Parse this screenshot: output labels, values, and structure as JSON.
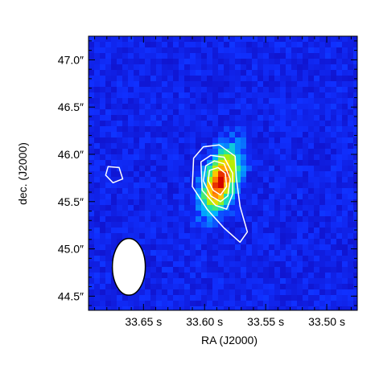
{
  "chart_data": {
    "type": "heatmap",
    "xlabel": "RA (J2000)",
    "ylabel": "dec. (J2000)",
    "x_ticks": [
      {
        "value": 33.65,
        "label": "33.65 s"
      },
      {
        "value": 33.6,
        "label": "33.60 s"
      },
      {
        "value": 33.55,
        "label": "33.55 s"
      },
      {
        "value": 33.5,
        "label": "33.50 s"
      }
    ],
    "y_ticks": [
      {
        "value": 44.5,
        "label": "44.5″"
      },
      {
        "value": 45.0,
        "label": "45.0″"
      },
      {
        "value": 45.5,
        "label": "45.5″"
      },
      {
        "value": 46.0,
        "label": "46.0″"
      },
      {
        "value": 46.5,
        "label": "46.5″"
      },
      {
        "value": 47.0,
        "label": "47.0″"
      }
    ],
    "xlim": [
      33.695,
      33.475
    ],
    "ylim": [
      44.35,
      47.25
    ],
    "colormap": [
      "#1010c8",
      "#1030ff",
      "#00b4ff",
      "#20e6a0",
      "#b4f000",
      "#ffd200",
      "#ff6400",
      "#d20000"
    ],
    "background_color": "#1a1ad6",
    "source_peak": {
      "ra": 33.587,
      "dec": 45.72
    },
    "contour_color": "#ffffff",
    "contours": [
      {
        "points": [
          [
            33.609,
            45.96
          ],
          [
            33.601,
            46.08
          ],
          [
            33.588,
            46.1
          ],
          [
            33.575,
            45.98
          ],
          [
            33.574,
            45.75
          ],
          [
            33.571,
            45.45
          ],
          [
            33.565,
            45.18
          ],
          [
            33.571,
            45.07
          ],
          [
            33.584,
            45.22
          ],
          [
            33.598,
            45.42
          ],
          [
            33.61,
            45.66
          ]
        ]
      },
      {
        "points": [
          [
            33.603,
            45.92
          ],
          [
            33.595,
            45.99
          ],
          [
            33.584,
            45.97
          ],
          [
            33.577,
            45.8
          ],
          [
            33.577,
            45.58
          ],
          [
            33.582,
            45.42
          ],
          [
            33.591,
            45.46
          ],
          [
            33.602,
            45.62
          ]
        ]
      },
      {
        "points": [
          [
            33.599,
            45.88
          ],
          [
            33.592,
            45.93
          ],
          [
            33.584,
            45.9
          ],
          [
            33.579,
            45.74
          ],
          [
            33.581,
            45.56
          ],
          [
            33.587,
            45.5
          ],
          [
            33.595,
            45.56
          ],
          [
            33.601,
            45.72
          ]
        ]
      },
      {
        "points": [
          [
            33.596,
            45.83
          ],
          [
            33.589,
            45.86
          ],
          [
            33.583,
            45.8
          ],
          [
            33.582,
            45.66
          ],
          [
            33.587,
            45.57
          ],
          [
            33.593,
            45.62
          ],
          [
            33.597,
            45.72
          ]
        ]
      },
      {
        "points": [
          [
            33.679,
            45.87
          ],
          [
            33.67,
            45.86
          ],
          [
            33.667,
            45.74
          ],
          [
            33.675,
            45.7
          ],
          [
            33.681,
            45.78
          ]
        ]
      }
    ],
    "beam": {
      "ra": 33.662,
      "dec": 44.81,
      "ra_width": 0.027,
      "dec_height": 0.6
    }
  }
}
